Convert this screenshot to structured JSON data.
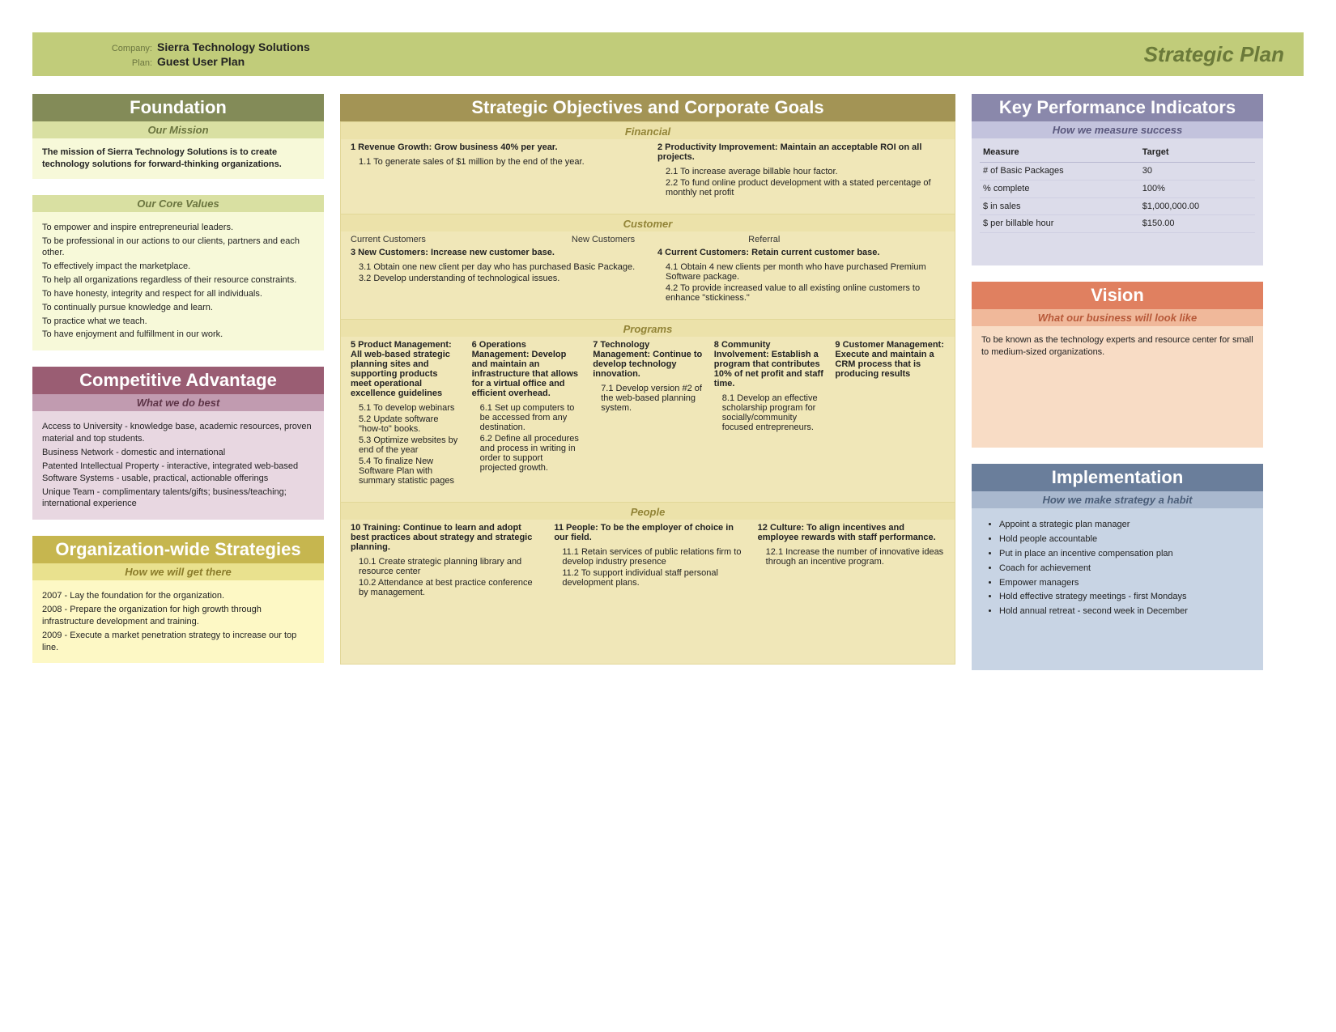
{
  "header": {
    "company_label": "Company:",
    "company_value": "Sierra Technology Solutions",
    "plan_label": "Plan:",
    "plan_value": "Guest User Plan",
    "title": "Strategic Plan"
  },
  "foundation": {
    "title": "Foundation",
    "mission_sub": "Our Mission",
    "mission_text": "The mission of Sierra Technology Solutions is to create technology solutions for forward-thinking organizations.",
    "values_sub": "Our Core Values",
    "values": [
      "To empower and inspire entrepreneurial leaders.",
      "To be professional in our actions to our clients, partners and each other.",
      "To effectively impact the marketplace.",
      "To help all organizations regardless of their resource constraints.",
      "To have honesty, integrity and respect for all individuals.",
      "To continually pursue knowledge and learn.",
      "To practice what we teach.",
      "To have enjoyment and fulfillment in our work."
    ]
  },
  "competitive": {
    "title": "Competitive Advantage",
    "sub": "What we do best",
    "items": [
      "Access to University - knowledge base, academic resources, proven material and top students.",
      "Business Network - domestic and international",
      "Patented Intellectual Property - interactive, integrated web-based Software Systems - usable, practical, actionable offerings",
      "Unique Team - complimentary talents/gifts; business/teaching; international experience"
    ]
  },
  "org": {
    "title": "Organization-wide Strategies",
    "sub": "How we will get there",
    "items": [
      "2007 - Lay the foundation for the organization.",
      "2008 - Prepare the organization for high growth through infrastructure development and training.",
      "2009 - Execute a market penetration strategy to increase our top line."
    ]
  },
  "mid": {
    "title": "Strategic Objectives and Corporate Goals",
    "financial": {
      "head": "Financial",
      "g1": {
        "title": "1 Revenue Growth: Grow business 40% per year.",
        "items": [
          "1.1 To generate sales of $1 million by the end of the year."
        ]
      },
      "g2": {
        "title": "2 Productivity Improvement: Maintain an acceptable ROI on all projects.",
        "items": [
          "2.1 To increase average billable hour factor.",
          "2.2 To fund online product development with a stated percentage of monthly net profit"
        ]
      }
    },
    "customer": {
      "head": "Customer",
      "labels": [
        "Current Customers",
        "New Customers",
        "Referral"
      ],
      "g3": {
        "title": "3 New Customers: Increase new customer base.",
        "items": [
          "3.1 Obtain one new client per day who has purchased Basic Package.",
          "3.2 Develop understanding of technological issues."
        ]
      },
      "g4": {
        "title": "4 Current Customers: Retain current customer base.",
        "items": [
          "4.1 Obtain 4 new clients per month who have purchased Premium Software package.",
          "4.2 To provide increased value to all existing online customers to enhance \"stickiness.\""
        ]
      }
    },
    "programs": {
      "head": "Programs",
      "g5": {
        "title": "5 Product Management: All web-based strategic planning sites and supporting products meet operational excellence guidelines",
        "items": [
          "5.1 To develop webinars",
          "5.2 Update software \"how-to\" books.",
          "5.3 Optimize websites by end of the year",
          "5.4 To finalize New Software Plan with summary statistic pages"
        ]
      },
      "g6": {
        "title": "6 Operations Management: Develop and maintain an infrastructure that allows for a virtual office and efficient overhead.",
        "items": [
          "6.1 Set up computers to be accessed from any destination.",
          "6.2 Define all procedures and process in writing in order to support projected growth."
        ]
      },
      "g7": {
        "title": "7 Technology Management: Continue to develop technology innovation.",
        "items": [
          "7.1 Develop version #2 of the web-based planning system."
        ]
      },
      "g8": {
        "title": "8 Community Involvement: Establish a program that contributes 10% of net profit and staff time.",
        "items": [
          "8.1 Develop an effective scholarship program for socially/community focused entrepreneurs."
        ]
      },
      "g9": {
        "title": "9 Customer Management: Execute and maintain a CRM process that is producing results",
        "items": []
      }
    },
    "people": {
      "head": "People",
      "g10": {
        "title": "10 Training: Continue to learn and adopt best practices about strategy and strategic planning.",
        "items": [
          "10.1 Create strategic planning library and resource center",
          "10.2 Attendance at best practice conference by management."
        ]
      },
      "g11": {
        "title": "11 People: To be the employer of choice in our field.",
        "items": [
          "11.1 Retain services of public relations firm to develop industry presence",
          "11.2 To support individual staff personal development plans."
        ]
      },
      "g12": {
        "title": "12 Culture: To align incentives and employee rewards with staff performance.",
        "items": [
          "12.1 Increase the number of innovative ideas through an incentive program."
        ]
      }
    }
  },
  "kpi": {
    "title": "Key Performance Indicators",
    "sub": "How we measure success",
    "col_measure": "Measure",
    "col_target": "Target",
    "rows": [
      {
        "m": "# of Basic Packages",
        "t": "30"
      },
      {
        "m": "% complete",
        "t": "100%"
      },
      {
        "m": "$ in sales",
        "t": "$1,000,000.00"
      },
      {
        "m": "$ per billable hour",
        "t": "$150.00"
      }
    ]
  },
  "vision": {
    "title": "Vision",
    "sub": "What our business will look like",
    "text": "To be known as the technology experts and resource center for small to medium-sized organizations."
  },
  "impl": {
    "title": "Implementation",
    "sub": "How we make strategy a habit",
    "items": [
      "Appoint a strategic plan manager",
      "Hold people accountable",
      "Put in place an incentive compensation plan",
      "Coach for achievement",
      "Empower managers",
      "Hold effective strategy meetings - first Mondays",
      "Hold annual retreat - second week in December"
    ]
  }
}
